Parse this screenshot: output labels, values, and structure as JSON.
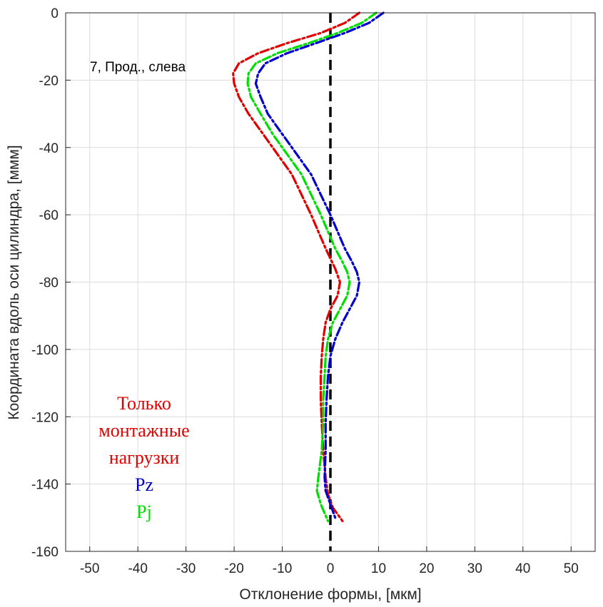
{
  "chart_data": {
    "type": "line",
    "xlabel": "Отклонение формы, [мкм]",
    "ylabel": "Координата вдоль оси цилиндра, [ммм]",
    "xlim": [
      -55,
      55
    ],
    "ylim": [
      -160,
      0
    ],
    "xticks": [
      -50,
      -40,
      -30,
      -20,
      -10,
      0,
      10,
      20,
      30,
      40,
      50
    ],
    "yticks": [
      0,
      -20,
      -40,
      -60,
      -80,
      -100,
      -120,
      -140,
      -160
    ],
    "grid": true,
    "annotation": "7, Прод., слева",
    "legend_placement": "bottom-left",
    "reference_line": {
      "x": 0,
      "style": "dashed",
      "color": "#000000"
    },
    "series": [
      {
        "name": "Только монтажные нагрузки",
        "color": "#e00000",
        "points": [
          [
            6.0,
            0
          ],
          [
            3.0,
            -3
          ],
          [
            -2.0,
            -6
          ],
          [
            -9.0,
            -9
          ],
          [
            -15.0,
            -12
          ],
          [
            -19.0,
            -15
          ],
          [
            -20.2,
            -18
          ],
          [
            -20.0,
            -21
          ],
          [
            -19.0,
            -25
          ],
          [
            -17.0,
            -30
          ],
          [
            -14.0,
            -36
          ],
          [
            -11.0,
            -42
          ],
          [
            -8.0,
            -48
          ],
          [
            -6.0,
            -54
          ],
          [
            -4.0,
            -60
          ],
          [
            -2.5,
            -65
          ],
          [
            -1.0,
            -70
          ],
          [
            0.0,
            -73
          ],
          [
            1.0,
            -76
          ],
          [
            2.0,
            -80
          ],
          [
            1.5,
            -84
          ],
          [
            0.0,
            -88
          ],
          [
            -1.0,
            -92
          ],
          [
            -1.5,
            -97
          ],
          [
            -1.8,
            -102
          ],
          [
            -2.0,
            -108
          ],
          [
            -2.0,
            -115
          ],
          [
            -1.8,
            -122
          ],
          [
            -1.5,
            -130
          ],
          [
            -1.0,
            -138
          ],
          [
            -0.5,
            -143
          ],
          [
            0.5,
            -147
          ],
          [
            2.5,
            -151
          ]
        ]
      },
      {
        "name": "Pz",
        "color": "#0000cc",
        "points": [
          [
            11.0,
            0
          ],
          [
            8.0,
            -3
          ],
          [
            3.0,
            -6
          ],
          [
            -3.0,
            -9
          ],
          [
            -9.0,
            -12
          ],
          [
            -13.5,
            -15
          ],
          [
            -15.0,
            -18
          ],
          [
            -15.5,
            -21
          ],
          [
            -14.5,
            -25
          ],
          [
            -13.0,
            -30
          ],
          [
            -10.0,
            -36
          ],
          [
            -7.0,
            -42
          ],
          [
            -4.0,
            -48
          ],
          [
            -2.0,
            -54
          ],
          [
            0.0,
            -60
          ],
          [
            1.5,
            -65
          ],
          [
            3.0,
            -70
          ],
          [
            4.5,
            -74
          ],
          [
            5.5,
            -77
          ],
          [
            6.0,
            -80
          ],
          [
            5.5,
            -84
          ],
          [
            4.0,
            -88
          ],
          [
            2.5,
            -92
          ],
          [
            1.0,
            -97
          ],
          [
            0.0,
            -102
          ],
          [
            -0.5,
            -108
          ],
          [
            -0.8,
            -115
          ],
          [
            -1.0,
            -122
          ],
          [
            -1.0,
            -130
          ],
          [
            -1.2,
            -138
          ],
          [
            -1.0,
            -142
          ],
          [
            0.0,
            -146
          ],
          [
            1.0,
            -150
          ]
        ]
      },
      {
        "name": "Pj",
        "color": "#00dd00",
        "points": [
          [
            9.5,
            0
          ],
          [
            6.5,
            -3
          ],
          [
            1.5,
            -6
          ],
          [
            -4.5,
            -9
          ],
          [
            -11.0,
            -12
          ],
          [
            -15.5,
            -15
          ],
          [
            -17.0,
            -18
          ],
          [
            -17.2,
            -21
          ],
          [
            -16.5,
            -25
          ],
          [
            -14.5,
            -30
          ],
          [
            -12.0,
            -36
          ],
          [
            -9.0,
            -42
          ],
          [
            -6.0,
            -48
          ],
          [
            -4.0,
            -54
          ],
          [
            -2.0,
            -60
          ],
          [
            -0.5,
            -65
          ],
          [
            1.0,
            -70
          ],
          [
            2.5,
            -74
          ],
          [
            3.5,
            -77
          ],
          [
            4.0,
            -80
          ],
          [
            3.5,
            -84
          ],
          [
            2.0,
            -88
          ],
          [
            0.5,
            -92
          ],
          [
            -0.5,
            -97
          ],
          [
            -1.0,
            -102
          ],
          [
            -1.2,
            -108
          ],
          [
            -1.5,
            -115
          ],
          [
            -1.5,
            -122
          ],
          [
            -1.8,
            -130
          ],
          [
            -2.5,
            -138
          ],
          [
            -2.8,
            -142
          ],
          [
            -2.0,
            -146
          ],
          [
            -0.5,
            -151
          ]
        ]
      }
    ],
    "legend": {
      "lines": [
        {
          "text": "Только",
          "color": "#e00000"
        },
        {
          "text": "монтажные",
          "color": "#e00000"
        },
        {
          "text": "нагрузки",
          "color": "#e00000"
        },
        {
          "text": "Pz",
          "color": "#0000cc"
        },
        {
          "text": "Pj",
          "color": "#00dd00"
        }
      ]
    }
  }
}
